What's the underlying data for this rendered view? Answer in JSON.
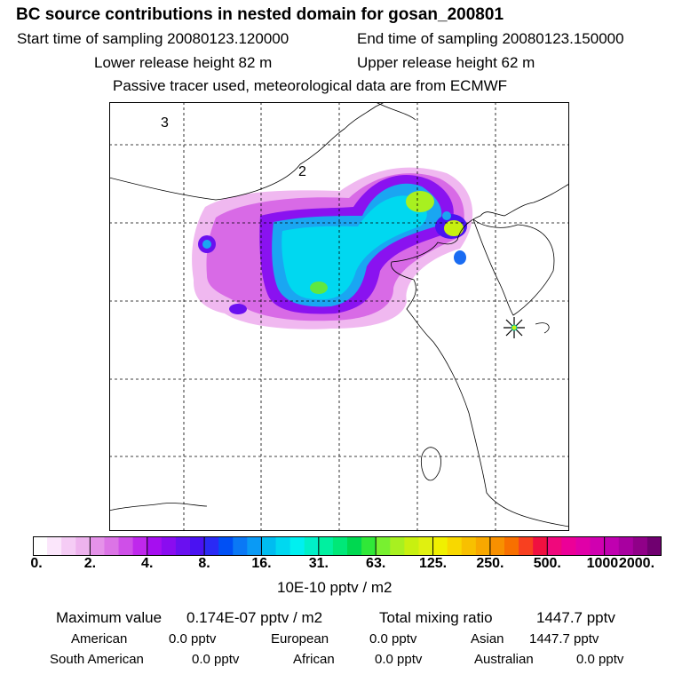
{
  "header": {
    "title": "BC  source contributions in nested domain for gosan_200801",
    "start_label": "Start time of sampling 20080123.120000",
    "end_label": "End time of sampling 20080123.150000",
    "lower_label": "Lower release height   82 m",
    "upper_label": "Upper release height   62 m",
    "tracer_note": "Passive tracer used, meteorological data are from ECMWF"
  },
  "map": {
    "labels": [
      "3",
      "2"
    ],
    "receptor_icon": "star-marker-icon"
  },
  "colorbar": {
    "tick_labels": [
      "0.",
      "2.",
      "4.",
      "8.",
      "16.",
      "31.",
      "63.",
      "125.",
      "250.",
      "500.",
      "1000.",
      "2000."
    ],
    "unit": "10E-10 pptv / m2",
    "colors": [
      "#ffffff",
      "#fbe6fb",
      "#f5ccf5",
      "#eeb3ee",
      "#e592e9",
      "#dc74e6",
      "#cf4fe8",
      "#bf28ec",
      "#a60ef0",
      "#8a0cf0",
      "#6a10f0",
      "#4a12f2",
      "#2a2af5",
      "#0050f5",
      "#0a78f5",
      "#0a9af5",
      "#00bcf0",
      "#00d8f0",
      "#00f0f0",
      "#00f0c8",
      "#00f0a0",
      "#00e878",
      "#00d850",
      "#30e838",
      "#78f030",
      "#a8f020",
      "#c8f010",
      "#e0f010",
      "#f0f000",
      "#f8d800",
      "#f8c000",
      "#f8a800",
      "#f89000",
      "#f87000",
      "#f84020",
      "#f01040",
      "#f0087c",
      "#ec0098",
      "#e000a8",
      "#d000b0",
      "#c000b0",
      "#a800a0",
      "#900088",
      "#700070"
    ]
  },
  "summary": {
    "max_label": "Maximum value",
    "max_value": "0.174E-07 pptv / m2",
    "total_label": "Total mixing ratio",
    "total_value": "1447.7 pptv",
    "regions": [
      {
        "name": "American",
        "value": "0.0 pptv"
      },
      {
        "name": "European",
        "value": "0.0 pptv"
      },
      {
        "name": "Asian",
        "value": "1447.7 pptv"
      },
      {
        "name": "South American",
        "value": "0.0 pptv"
      },
      {
        "name": "African",
        "value": "0.0 pptv"
      },
      {
        "name": "Australian",
        "value": "0.0 pptv"
      }
    ]
  }
}
